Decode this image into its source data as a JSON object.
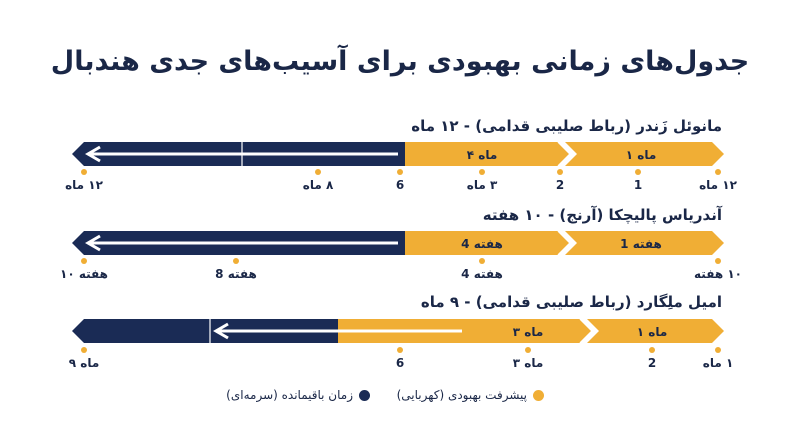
{
  "title": "جدول‌های زمانی بهبودی برای آسیب‌های جدی هندبال",
  "colors": {
    "amber": "#f0ae35",
    "navy": "#1a2b55",
    "arrow": "#ffffff"
  },
  "rows": [
    {
      "heading": "مانوئل زَندر (رباط صلیبی قدامی) - ۱۲ ماه",
      "segment_labels": [
        "ماه ۱",
        "ماه ۴"
      ],
      "ticks": [
        "۱۲ ماه",
        "1",
        "2",
        "۳ ماه",
        "6",
        "۸ ماه",
        "۱۲ ماه"
      ]
    },
    {
      "heading": "آندریاس پالیچکا (آرنج) - ۱۰ هفته",
      "segment_labels": [
        "هفته 1",
        "هفته 4"
      ],
      "ticks": [
        "۱۰ هفته",
        "هفته 4",
        "هفته 8",
        "هفته ۱۰"
      ]
    },
    {
      "heading": "امیل ملِگارد (رباط صلیبی قدامی) - ۹ ماه",
      "segment_labels": [
        "ماه ۱",
        "ماه ۳"
      ],
      "ticks": [
        "۱ ماه",
        "2",
        "ماه ۳",
        "6",
        "ماه ۹"
      ]
    }
  ],
  "legend": {
    "progress": "پیشرفت بهبودی (کهربایی)",
    "remaining": "زمان باقیمانده (سرمه‌ای)"
  }
}
